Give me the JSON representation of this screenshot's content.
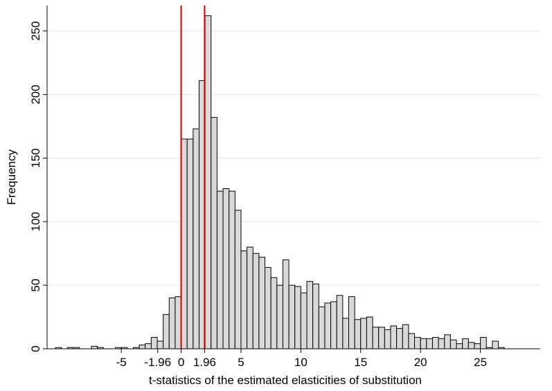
{
  "chart_data": {
    "type": "bar",
    "xlabel": "t-statistics of the estimated elasticities of substitution",
    "ylabel": "Frequency",
    "xlim": [
      -11.2,
      30.0
    ],
    "ylim": [
      0,
      270
    ],
    "grid": true,
    "bin_width": 0.5,
    "x_ticks": [
      {
        "value": -5,
        "label": "-5",
        "color": "#000000"
      },
      {
        "value": -1.96,
        "label": "-1.96",
        "color": "#000000"
      },
      {
        "value": 0,
        "label": "0",
        "color": "#000000"
      },
      {
        "value": 1.96,
        "label": "1.96",
        "color": "#ff0000"
      },
      {
        "value": 5,
        "label": "5",
        "color": "#000000"
      },
      {
        "value": 10,
        "label": "10",
        "color": "#000000"
      },
      {
        "value": 15,
        "label": "15",
        "color": "#000000"
      },
      {
        "value": 20,
        "label": "20",
        "color": "#000000"
      },
      {
        "value": 25,
        "label": "25",
        "color": "#000000"
      }
    ],
    "y_ticks": [
      {
        "value": 0,
        "label": "0"
      },
      {
        "value": 50,
        "label": "50"
      },
      {
        "value": 100,
        "label": "100"
      },
      {
        "value": 150,
        "label": "150"
      },
      {
        "value": 200,
        "label": "200"
      },
      {
        "value": 250,
        "label": "250"
      }
    ],
    "reference_lines": [
      {
        "x": 0,
        "color": "#cc0000"
      },
      {
        "x": 1.96,
        "color": "#cc0000"
      }
    ],
    "bins": [
      {
        "x": -10.5,
        "y": 1
      },
      {
        "x": -9.5,
        "y": 1
      },
      {
        "x": -9.0,
        "y": 1
      },
      {
        "x": -7.5,
        "y": 2
      },
      {
        "x": -7.0,
        "y": 1
      },
      {
        "x": -5.5,
        "y": 1
      },
      {
        "x": -5.0,
        "y": 1
      },
      {
        "x": -4.0,
        "y": 1
      },
      {
        "x": -3.5,
        "y": 3
      },
      {
        "x": -3.0,
        "y": 4
      },
      {
        "x": -2.5,
        "y": 9
      },
      {
        "x": -2.0,
        "y": 6
      },
      {
        "x": -1.5,
        "y": 27
      },
      {
        "x": -1.0,
        "y": 40
      },
      {
        "x": -0.5,
        "y": 41
      },
      {
        "x": 0.0,
        "y": 165
      },
      {
        "x": 0.5,
        "y": 165
      },
      {
        "x": 1.0,
        "y": 173
      },
      {
        "x": 1.5,
        "y": 211
      },
      {
        "x": 2.0,
        "y": 262
      },
      {
        "x": 2.5,
        "y": 182
      },
      {
        "x": 3.0,
        "y": 124
      },
      {
        "x": 3.5,
        "y": 126
      },
      {
        "x": 4.0,
        "y": 124
      },
      {
        "x": 4.5,
        "y": 109
      },
      {
        "x": 5.0,
        "y": 77
      },
      {
        "x": 5.5,
        "y": 80
      },
      {
        "x": 6.0,
        "y": 75
      },
      {
        "x": 6.5,
        "y": 72
      },
      {
        "x": 7.0,
        "y": 64
      },
      {
        "x": 7.5,
        "y": 56
      },
      {
        "x": 8.0,
        "y": 50
      },
      {
        "x": 8.5,
        "y": 70
      },
      {
        "x": 9.0,
        "y": 50
      },
      {
        "x": 9.5,
        "y": 49
      },
      {
        "x": 10.0,
        "y": 44
      },
      {
        "x": 10.5,
        "y": 53
      },
      {
        "x": 11.0,
        "y": 51
      },
      {
        "x": 11.5,
        "y": 33
      },
      {
        "x": 12.0,
        "y": 36
      },
      {
        "x": 12.5,
        "y": 37
      },
      {
        "x": 13.0,
        "y": 42
      },
      {
        "x": 13.5,
        "y": 24
      },
      {
        "x": 14.0,
        "y": 41
      },
      {
        "x": 14.5,
        "y": 23
      },
      {
        "x": 15.0,
        "y": 24
      },
      {
        "x": 15.5,
        "y": 25
      },
      {
        "x": 16.0,
        "y": 17
      },
      {
        "x": 16.5,
        "y": 17
      },
      {
        "x": 17.0,
        "y": 15
      },
      {
        "x": 17.5,
        "y": 18
      },
      {
        "x": 18.0,
        "y": 16
      },
      {
        "x": 18.5,
        "y": 19
      },
      {
        "x": 19.0,
        "y": 12
      },
      {
        "x": 19.5,
        "y": 9
      },
      {
        "x": 20.0,
        "y": 8
      },
      {
        "x": 20.5,
        "y": 8
      },
      {
        "x": 21.0,
        "y": 9
      },
      {
        "x": 21.5,
        "y": 8
      },
      {
        "x": 22.0,
        "y": 11
      },
      {
        "x": 22.5,
        "y": 7
      },
      {
        "x": 23.0,
        "y": 4
      },
      {
        "x": 23.5,
        "y": 8
      },
      {
        "x": 24.0,
        "y": 5
      },
      {
        "x": 24.5,
        "y": 4
      },
      {
        "x": 25.0,
        "y": 9
      },
      {
        "x": 25.5,
        "y": 1
      },
      {
        "x": 26.0,
        "y": 6
      },
      {
        "x": 26.5,
        "y": 1
      }
    ]
  }
}
